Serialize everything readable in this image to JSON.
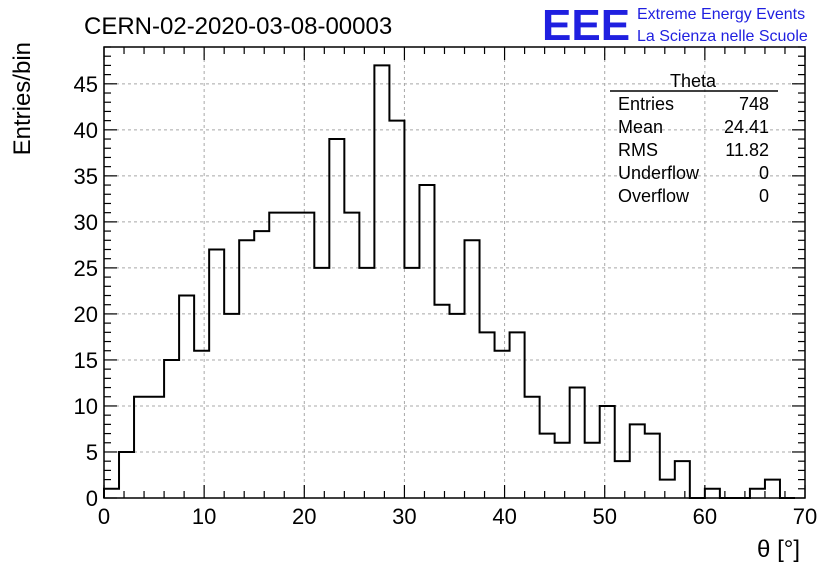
{
  "chart_data": {
    "type": "bar",
    "title": "CERN-02-2020-03-08-00003",
    "xlabel": "θ [°]",
    "ylabel": "Entries/bin",
    "xlim": [
      0,
      70
    ],
    "ylim": [
      0,
      49
    ],
    "grid": true,
    "bin_width": 1.5,
    "x_ticks": [
      0,
      10,
      20,
      30,
      40,
      50,
      60,
      70
    ],
    "y_ticks": [
      0,
      5,
      10,
      15,
      20,
      25,
      30,
      35,
      40,
      45
    ],
    "bin_edges": [
      0,
      1.5,
      3,
      4.5,
      6,
      7.5,
      9,
      10.5,
      12,
      13.5,
      15,
      16.5,
      18,
      19.5,
      21,
      22.5,
      24,
      25.5,
      27,
      28.5,
      30,
      31.5,
      33,
      34.5,
      36,
      37.5,
      39,
      40.5,
      42,
      43.5,
      45,
      46.5,
      48,
      49.5,
      51,
      52.5,
      54,
      55.5,
      57,
      58.5,
      60,
      61.5,
      63,
      64.5,
      66,
      67.5
    ],
    "values": [
      1,
      5,
      11,
      11,
      15,
      22,
      16,
      27,
      20,
      28,
      29,
      31,
      31,
      31,
      25,
      39,
      31,
      25,
      47,
      41,
      25,
      34,
      21,
      20,
      28,
      18,
      16,
      18,
      11,
      7,
      6,
      12,
      6,
      10,
      4,
      8,
      7,
      2,
      4,
      0,
      1,
      0,
      0,
      1,
      2,
      0
    ],
    "stats": {
      "name": "Theta",
      "rows": [
        {
          "label": "Entries",
          "value": "748"
        },
        {
          "label": "Mean",
          "value": "24.41"
        },
        {
          "label": "RMS",
          "value": "11.82"
        },
        {
          "label": "Underflow",
          "value": "0"
        },
        {
          "label": "Overflow",
          "value": "0"
        }
      ]
    }
  },
  "logo": {
    "letters": "EEE",
    "line1": "Extreme Energy Events",
    "line2": "La Scienza nelle Scuole",
    "color": "#1f1fe0"
  }
}
